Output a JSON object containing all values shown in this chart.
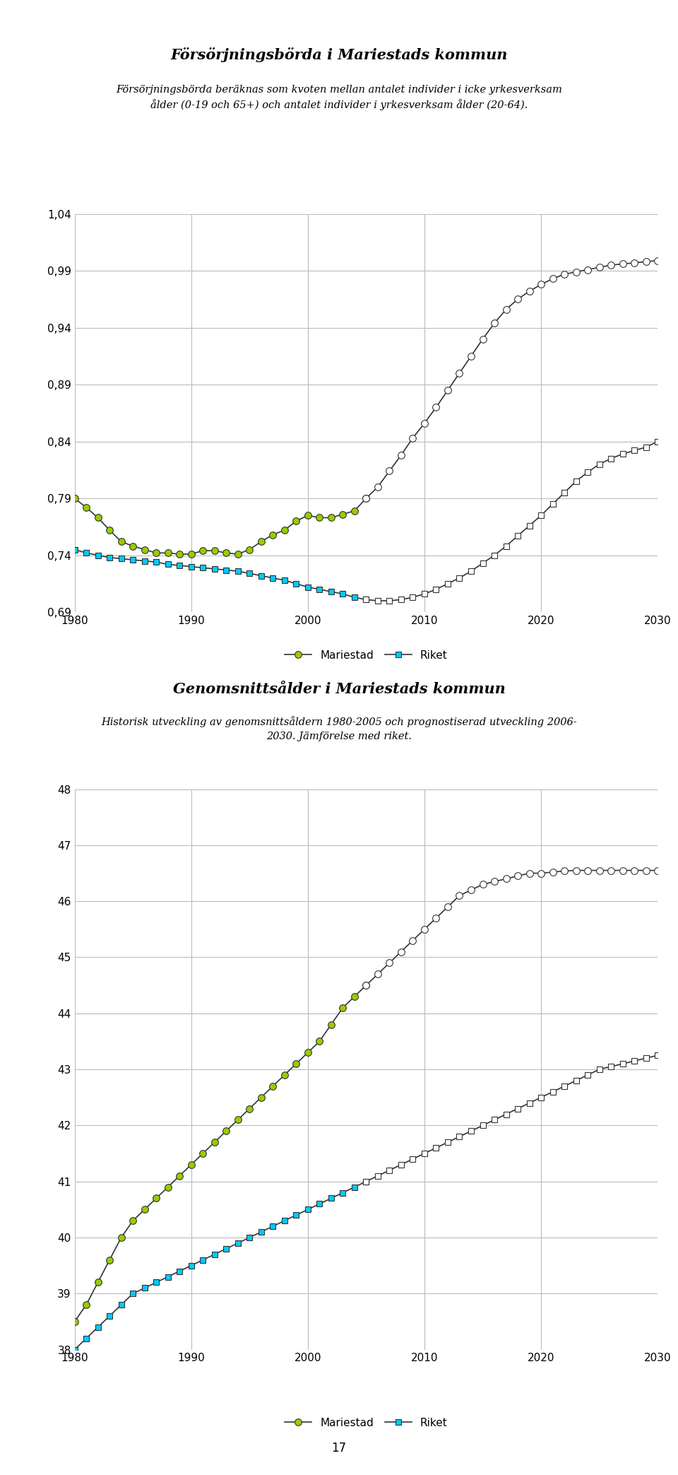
{
  "title1": "Försörjningsbörda i Mariestads kommun",
  "subtitle1": "Försörjningsbörda beräknas som kvoten mellan antalet individer i icke yrkesverksam\nålder (0-19 och 65+) och antalet individer i yrkesverksam ålder (20-64).",
  "title2": "Genomsnittsålder i Mariestads kommun",
  "subtitle2": "Historisk utveckling av genomsnittsåldern 1980-2005 och prognostiserad utveckling 2006-\n2030. Jämförelse med riket.",
  "chart1": {
    "years_hist": [
      1980,
      1981,
      1982,
      1983,
      1984,
      1985,
      1986,
      1987,
      1988,
      1989,
      1990,
      1991,
      1992,
      1993,
      1994,
      1995,
      1996,
      1997,
      1998,
      1999,
      2000,
      2001,
      2002,
      2003,
      2004,
      2005
    ],
    "years_proj": [
      2005,
      2006,
      2007,
      2008,
      2009,
      2010,
      2011,
      2012,
      2013,
      2014,
      2015,
      2016,
      2017,
      2018,
      2019,
      2020,
      2021,
      2022,
      2023,
      2024,
      2025,
      2026,
      2027,
      2028,
      2029,
      2030
    ],
    "mariestad_hist": [
      0.79,
      0.782,
      0.773,
      0.762,
      0.752,
      0.748,
      0.745,
      0.742,
      0.742,
      0.741,
      0.741,
      0.744,
      0.744,
      0.742,
      0.741,
      0.745,
      0.752,
      0.758,
      0.762,
      0.77,
      0.775,
      0.773,
      0.773,
      0.776,
      0.779,
      0.79
    ],
    "mariestad_proj": [
      0.79,
      0.8,
      0.814,
      0.828,
      0.843,
      0.856,
      0.87,
      0.885,
      0.9,
      0.915,
      0.93,
      0.944,
      0.956,
      0.965,
      0.972,
      0.978,
      0.983,
      0.987,
      0.989,
      0.991,
      0.993,
      0.995,
      0.996,
      0.997,
      0.998,
      0.999
    ],
    "riket_hist": [
      0.745,
      0.742,
      0.74,
      0.738,
      0.737,
      0.736,
      0.735,
      0.734,
      0.732,
      0.731,
      0.73,
      0.729,
      0.728,
      0.727,
      0.726,
      0.724,
      0.722,
      0.72,
      0.718,
      0.715,
      0.712,
      0.71,
      0.708,
      0.706,
      0.703,
      0.701
    ],
    "riket_proj": [
      0.701,
      0.7,
      0.7,
      0.701,
      0.703,
      0.706,
      0.71,
      0.715,
      0.72,
      0.726,
      0.733,
      0.74,
      0.748,
      0.757,
      0.766,
      0.775,
      0.785,
      0.795,
      0.805,
      0.813,
      0.82,
      0.825,
      0.829,
      0.832,
      0.835,
      0.84
    ],
    "ylim": [
      0.69,
      1.04
    ],
    "yticks": [
      0.69,
      0.74,
      0.79,
      0.84,
      0.89,
      0.94,
      0.99,
      1.04
    ],
    "xlim": [
      1980,
      2030
    ],
    "xticks": [
      1980,
      1990,
      2000,
      2010,
      2020,
      2030
    ]
  },
  "chart2": {
    "years_hist": [
      1980,
      1981,
      1982,
      1983,
      1984,
      1985,
      1986,
      1987,
      1988,
      1989,
      1990,
      1991,
      1992,
      1993,
      1994,
      1995,
      1996,
      1997,
      1998,
      1999,
      2000,
      2001,
      2002,
      2003,
      2004,
      2005
    ],
    "years_proj": [
      2005,
      2006,
      2007,
      2008,
      2009,
      2010,
      2011,
      2012,
      2013,
      2014,
      2015,
      2016,
      2017,
      2018,
      2019,
      2020,
      2021,
      2022,
      2023,
      2024,
      2025,
      2026,
      2027,
      2028,
      2029,
      2030
    ],
    "mariestad_hist": [
      38.5,
      38.8,
      39.2,
      39.6,
      40.0,
      40.3,
      40.5,
      40.7,
      40.9,
      41.1,
      41.3,
      41.5,
      41.7,
      41.9,
      42.1,
      42.3,
      42.5,
      42.7,
      42.9,
      43.1,
      43.3,
      43.5,
      43.8,
      44.1,
      44.3,
      44.5
    ],
    "mariestad_proj": [
      44.5,
      44.7,
      44.9,
      45.1,
      45.3,
      45.5,
      45.7,
      45.9,
      46.1,
      46.2,
      46.3,
      46.35,
      46.4,
      46.45,
      46.5,
      46.5,
      46.52,
      46.54,
      46.55,
      46.55,
      46.55,
      46.55,
      46.55,
      46.55,
      46.55,
      46.55
    ],
    "riket_hist": [
      38.0,
      38.2,
      38.4,
      38.6,
      38.8,
      39.0,
      39.1,
      39.2,
      39.3,
      39.4,
      39.5,
      39.6,
      39.7,
      39.8,
      39.9,
      40.0,
      40.1,
      40.2,
      40.3,
      40.4,
      40.5,
      40.6,
      40.7,
      40.8,
      40.9,
      41.0
    ],
    "riket_proj": [
      41.0,
      41.1,
      41.2,
      41.3,
      41.4,
      41.5,
      41.6,
      41.7,
      41.8,
      41.9,
      42.0,
      42.1,
      42.2,
      42.3,
      42.4,
      42.5,
      42.6,
      42.7,
      42.8,
      42.9,
      43.0,
      43.05,
      43.1,
      43.15,
      43.2,
      43.25
    ],
    "ylim": [
      38,
      48
    ],
    "yticks": [
      38,
      39,
      40,
      41,
      42,
      43,
      44,
      45,
      46,
      47,
      48
    ],
    "xlim": [
      1980,
      2030
    ],
    "xticks": [
      1980,
      1990,
      2000,
      2010,
      2020,
      2030
    ]
  },
  "mariestad_color": "#99cc00",
  "mariestad_marker": "o",
  "riket_color": "#00ccff",
  "riket_marker": "s",
  "legend_mariestad": "Mariestad",
  "legend_riket": "Riket",
  "background_color": "#ffffff",
  "grid_color": "#bbbbbb",
  "line_color": "#333333",
  "page_number": "17"
}
